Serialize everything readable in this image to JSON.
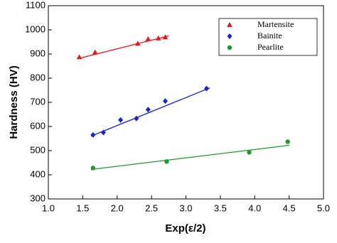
{
  "chart_data": {
    "type": "scatter",
    "xlabel": "Exp(ε/2)",
    "ylabel": "Hardness (HV)",
    "xlim": [
      1.0,
      5.0
    ],
    "xticks": [
      {
        "value": 1.0,
        "label": "1.0"
      },
      {
        "value": 1.5,
        "label": "1.5"
      },
      {
        "value": 2.0,
        "label": "2.0"
      },
      {
        "value": 2.5,
        "label": "2.5"
      },
      {
        "value": 3.0,
        "label": "3.0"
      },
      {
        "value": 3.5,
        "label": "3.5"
      },
      {
        "value": 4.0,
        "label": "4.0"
      },
      {
        "value": 4.5,
        "label": "4.5"
      },
      {
        "value": 5.0,
        "label": "5.0"
      }
    ],
    "ylim": [
      300,
      1100
    ],
    "yticks": [
      300,
      400,
      500,
      600,
      700,
      800,
      900,
      1000,
      1100
    ],
    "grid": false,
    "legend": "upper right",
    "series": [
      {
        "name": "Martensite",
        "color": "#e8141c",
        "marker": "triangle",
        "x": [
          1.45,
          1.68,
          2.3,
          2.45,
          2.6,
          2.7
        ],
        "values": [
          887,
          907,
          943,
          962,
          965,
          970
        ],
        "trendline": {
          "x": [
            1.45,
            2.75
          ],
          "values": [
            882,
            975
          ]
        }
      },
      {
        "name": "Bainite",
        "color": "#1a22d6",
        "marker": "diamond",
        "x": [
          1.65,
          1.8,
          2.05,
          2.28,
          2.45,
          2.7,
          3.3
        ],
        "values": [
          565,
          575,
          627,
          633,
          670,
          705,
          757
        ],
        "trendline": {
          "x": [
            1.62,
            3.35
          ],
          "values": [
            560,
            760
          ]
        }
      },
      {
        "name": "Pearlite",
        "color": "#1a9a2a",
        "marker": "circle",
        "x": [
          1.65,
          2.72,
          3.92,
          4.48
        ],
        "values": [
          428,
          455,
          493,
          537
        ],
        "trendline": {
          "x": [
            1.62,
            4.5
          ],
          "values": [
            422,
            522
          ]
        }
      }
    ]
  }
}
